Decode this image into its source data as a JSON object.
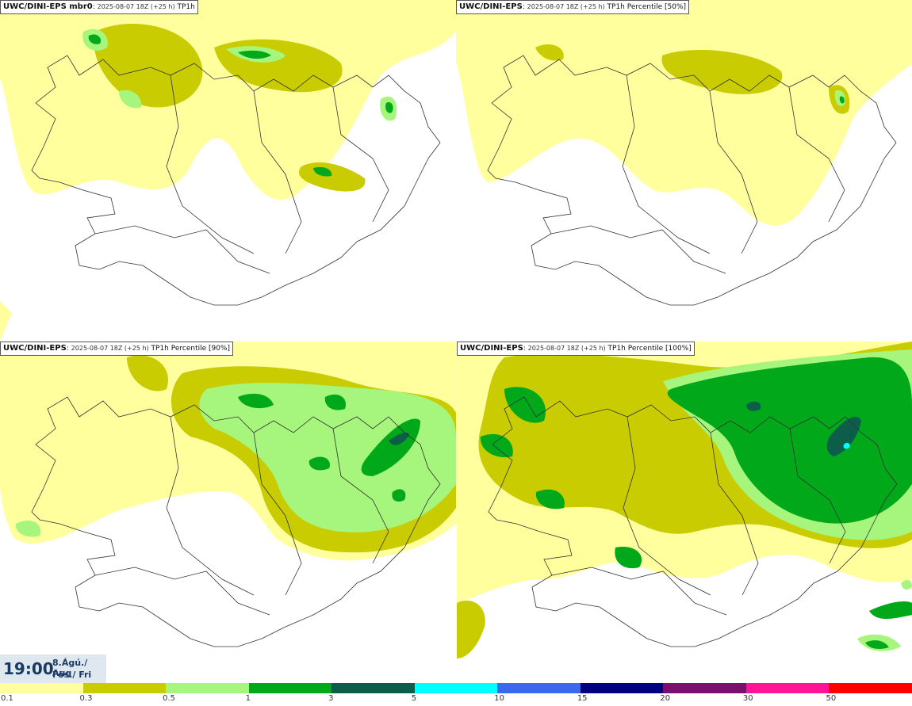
{
  "panels": [
    {
      "model": "UWC/DINI-EPS mbr0",
      "timestamp": "2025-08-07 18Z (+25 h)",
      "field": "TP1h"
    },
    {
      "model": "UWC/DINI-EPS",
      "timestamp": "2025-08-07 18Z (+25 h)",
      "field": "TP1h Percentile [50%]"
    },
    {
      "model": "UWC/DINI-EPS",
      "timestamp": "2025-08-07 18Z (+25 h)",
      "field": "TP1h Percentile [90%]"
    },
    {
      "model": "UWC/DINI-EPS",
      "timestamp": "2025-08-07 18Z (+25 h)",
      "field": "TP1h Percentile [100%]"
    }
  ],
  "valid_time": {
    "time": "19:00",
    "date": "8.Ágú./ Aug",
    "day": "Fös./ Fri"
  },
  "colorbar": {
    "colors": [
      "#ffff9e",
      "#c8cc00",
      "#a6f57c",
      "#00a81a",
      "#0c5e4b",
      "#00ffff",
      "#3a69f0",
      "#000080",
      "#7a0f6e",
      "#ff1493",
      "#ff0000"
    ],
    "ticks": [
      "0.1",
      "0.3",
      "0.5",
      "1",
      "3",
      "5",
      "10",
      "15",
      "20",
      "30",
      "50"
    ]
  }
}
